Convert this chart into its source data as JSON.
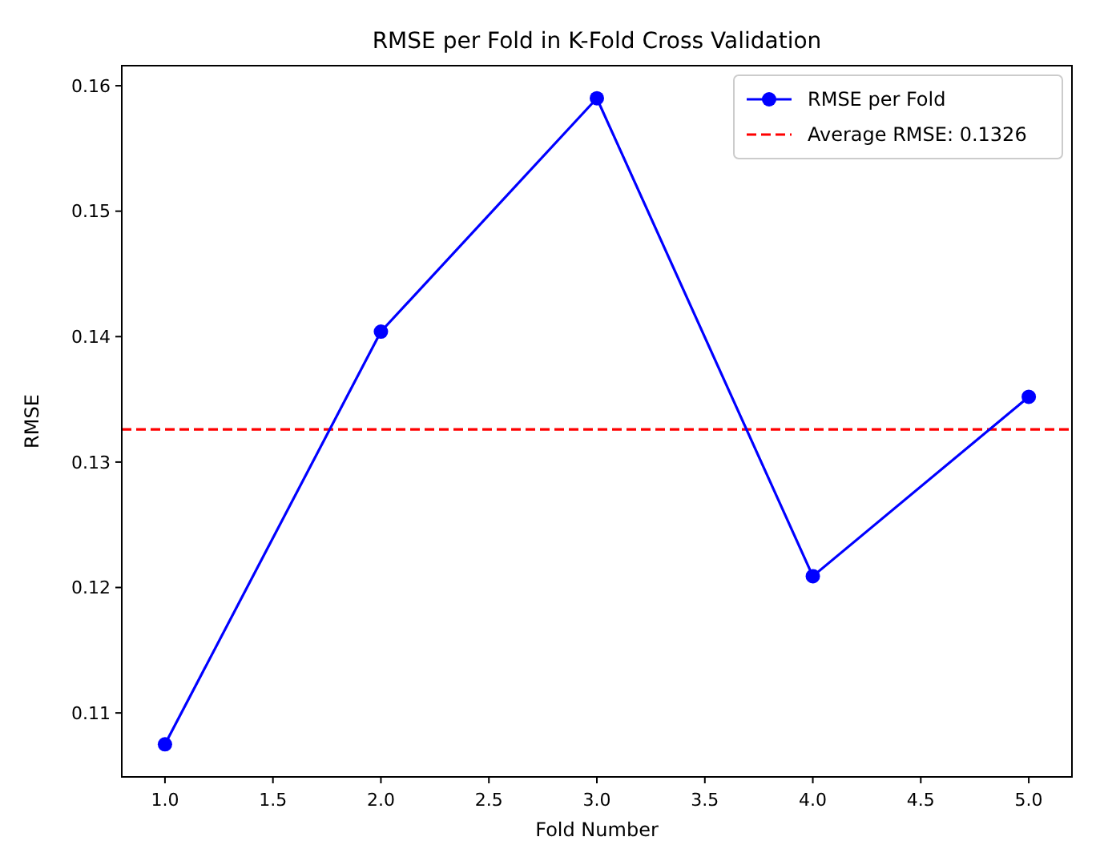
{
  "chart_data": {
    "type": "line",
    "title": "RMSE per Fold in K-Fold Cross Validation",
    "xlabel": "Fold Number",
    "ylabel": "RMSE",
    "x": [
      1,
      2,
      3,
      4,
      5
    ],
    "series": [
      {
        "name": "RMSE per Fold",
        "color": "#0000ff",
        "values": [
          0.1075,
          0.1404,
          0.159,
          0.1209,
          0.1352
        ]
      }
    ],
    "marker": "circle",
    "line_style": "solid",
    "grid": false,
    "legend": "top right",
    "xlim": [
      0.8,
      5.2
    ],
    "xticks": [
      {
        "value": 1,
        "label": "1.0"
      },
      {
        "value": 1.5,
        "label": "1.5"
      },
      {
        "value": 2,
        "label": "2.0"
      },
      {
        "value": 2.5,
        "label": "2.5"
      },
      {
        "value": 3,
        "label": "3.0"
      },
      {
        "value": 3.5,
        "label": "3.5"
      },
      {
        "value": 4,
        "label": "4.0"
      },
      {
        "value": 4.5,
        "label": "4.5"
      },
      {
        "value": 5,
        "label": "5.0"
      }
    ],
    "ylim": [
      0.1049,
      0.1616
    ],
    "yticks": [
      0.11,
      0.12,
      0.13,
      0.14,
      0.15,
      0.16
    ],
    "ref_lines": [
      {
        "axis": "y",
        "value": 0.1326,
        "label": "Average RMSE: 0.1326",
        "color": "#ff0000",
        "line_style": "dashed"
      }
    ]
  }
}
